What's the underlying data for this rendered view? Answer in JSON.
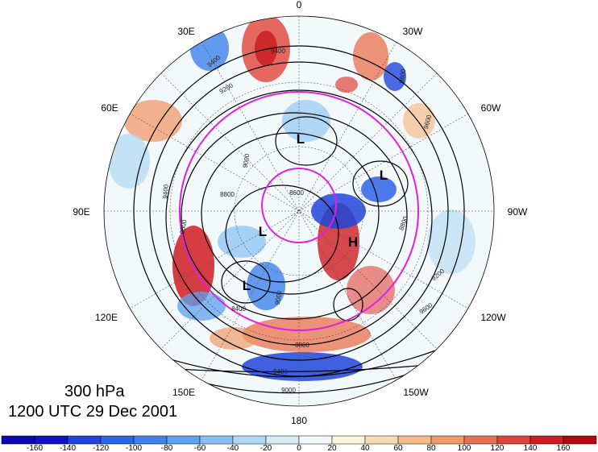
{
  "map": {
    "level": "300 hPa",
    "valid_time": "1200 UTC 29 Dec 2001",
    "longitude_labels": [
      "0",
      "30W",
      "60W",
      "90W",
      "120W",
      "150W",
      "180",
      "150E",
      "120E",
      "90E",
      "60E",
      "30E"
    ],
    "pressure_systems": [
      {
        "label": "L"
      },
      {
        "label": "L"
      },
      {
        "label": "L"
      },
      {
        "label": "L"
      },
      {
        "label": "H"
      }
    ],
    "contour_labels": [
      "9400",
      "9400",
      "9200",
      "9000",
      "8800",
      "8800",
      "8600",
      "8400",
      "9600",
      "9800",
      "9400",
      "9600",
      "8800",
      "9000",
      "9200",
      "9600",
      "9000",
      "9400"
    ],
    "colors": {
      "ring": "#e020e0",
      "contour": "#000000"
    }
  },
  "colorbar": {
    "ticks": [
      "-160",
      "-140",
      "-120",
      "-100",
      "-80",
      "-60",
      "-40",
      "-20",
      "0",
      "20",
      "40",
      "60",
      "80",
      "100",
      "120",
      "140",
      "160"
    ],
    "colors": [
      "#1010c8",
      "#1f45dc",
      "#2e64e6",
      "#3d82ee",
      "#5ea2f2",
      "#84c0f4",
      "#aed8f4",
      "#d4ecf6",
      "#f0f8fa",
      "#fcf4d8",
      "#f9dcb0",
      "#f5bc8a",
      "#f09a6a",
      "#e8704e",
      "#e04438",
      "#d01c22",
      "#b4080e"
    ]
  }
}
